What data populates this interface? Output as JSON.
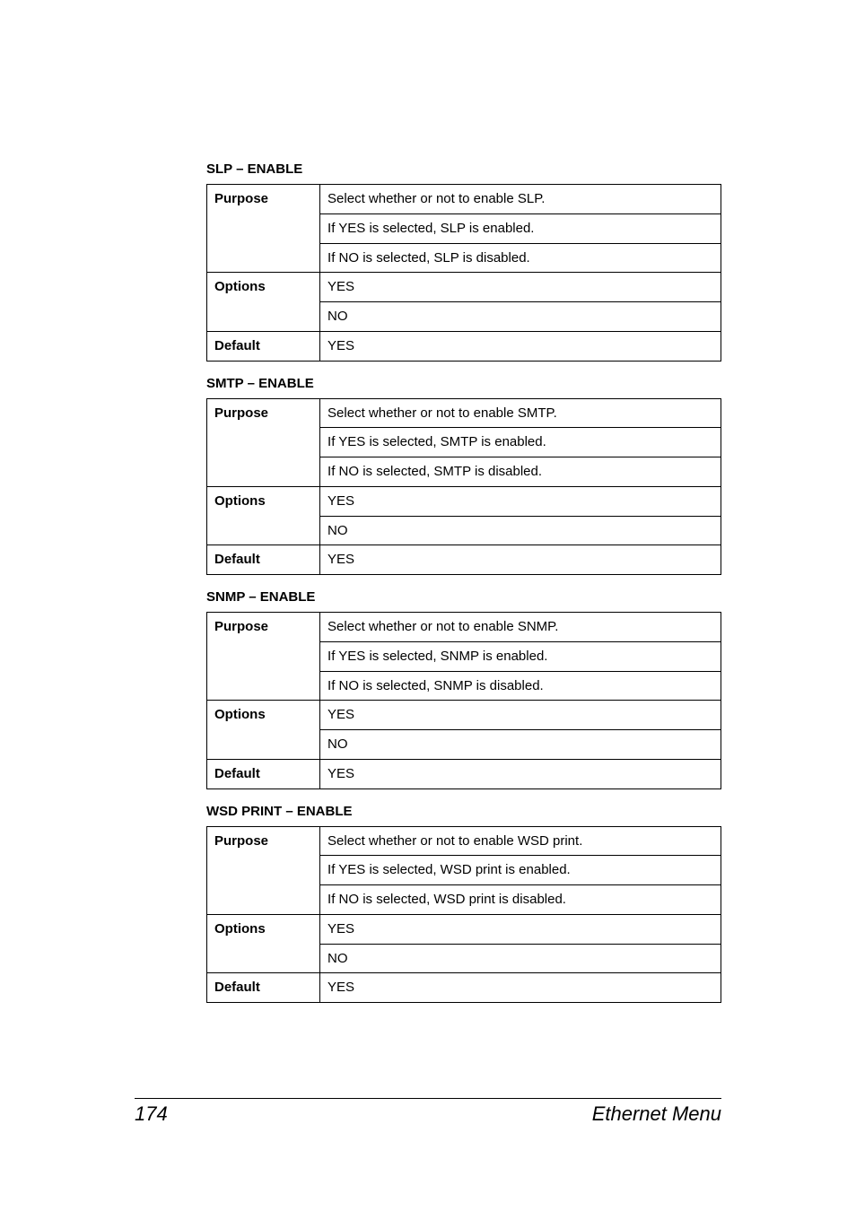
{
  "sections": [
    {
      "title": "SLP – ENABLE",
      "rows": {
        "purpose": [
          "Select whether or not to enable SLP.",
          "If YES is selected, SLP is enabled.",
          "If NO is selected, SLP is disabled."
        ],
        "options": [
          "YES",
          "NO"
        ],
        "default": "YES"
      }
    },
    {
      "title": "SMTP – ENABLE",
      "rows": {
        "purpose": [
          "Select whether or not to enable SMTP.",
          "If YES is selected, SMTP is enabled.",
          "If NO is selected, SMTP is disabled."
        ],
        "options": [
          "YES",
          "NO"
        ],
        "default": "YES"
      }
    },
    {
      "title": "SNMP – ENABLE",
      "rows": {
        "purpose": [
          "Select whether or not to enable SNMP.",
          "If YES is selected, SNMP is enabled.",
          "If NO is selected, SNMP is disabled."
        ],
        "options": [
          "YES",
          "NO"
        ],
        "default": "YES"
      }
    },
    {
      "title": "WSD PRINT – ENABLE",
      "rows": {
        "purpose": [
          "Select whether or not to enable WSD print.",
          "If YES is selected, WSD print is enabled.",
          "If NO is selected, WSD print is disabled."
        ],
        "options": [
          "YES",
          "NO"
        ],
        "default": "YES"
      }
    }
  ],
  "labels": {
    "purpose": "Purpose",
    "options": "Options",
    "default": "Default"
  },
  "footer": {
    "page": "174",
    "section": "Ethernet Menu"
  },
  "style": {
    "background": "#ffffff",
    "text_color": "#000000",
    "border_color": "#000000",
    "title_fontsize": 15,
    "body_fontsize": 15,
    "footer_fontsize": 22
  }
}
